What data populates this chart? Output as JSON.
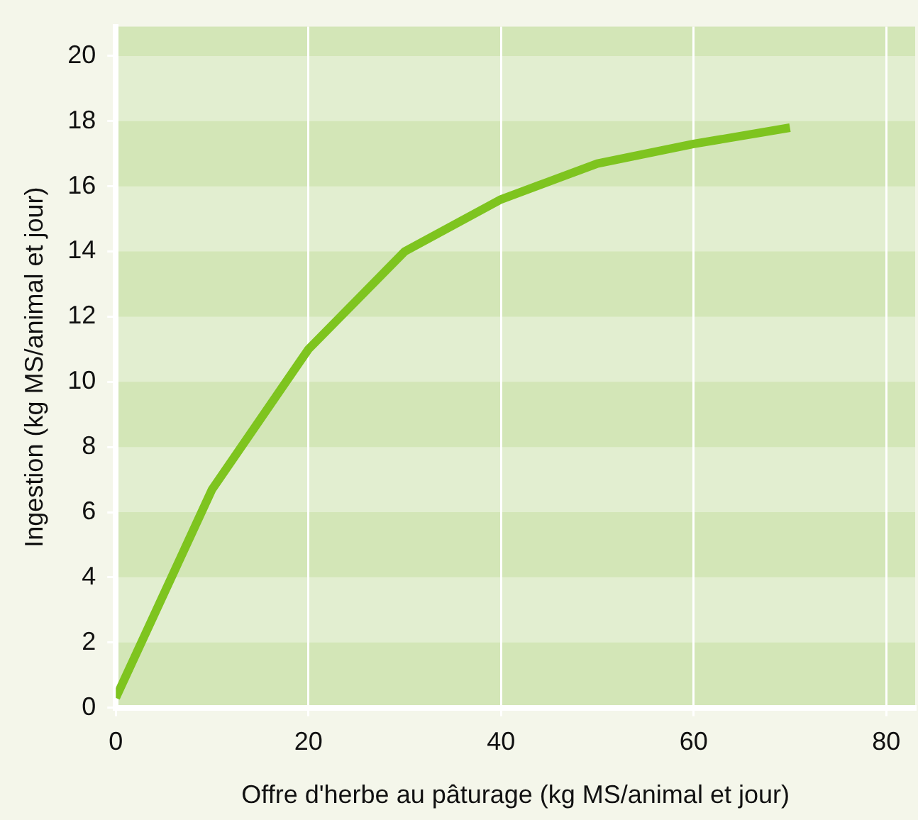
{
  "chart_data": {
    "type": "line",
    "xlabel": "Offre d'herbe au pâturage (kg MS/animal et jour)",
    "ylabel": "Ingestion (kg MS/animal et jour)",
    "x": [
      0,
      10,
      20,
      30,
      40,
      50,
      60,
      70
    ],
    "series": [
      {
        "color": "#7ec41f",
        "values": [
          0.3,
          6.7,
          11.0,
          14.0,
          15.6,
          16.7,
          17.3,
          17.8
        ]
      }
    ],
    "xlim": [
      0,
      83
    ],
    "xticks": [
      0,
      20,
      40,
      60,
      80
    ],
    "ylim": [
      0,
      20.9
    ],
    "yticks": [
      0,
      2,
      4,
      6,
      8,
      10,
      12,
      14,
      16,
      18,
      20
    ],
    "grid": "x",
    "legend": false,
    "marker": "none",
    "line_style": "solid"
  }
}
